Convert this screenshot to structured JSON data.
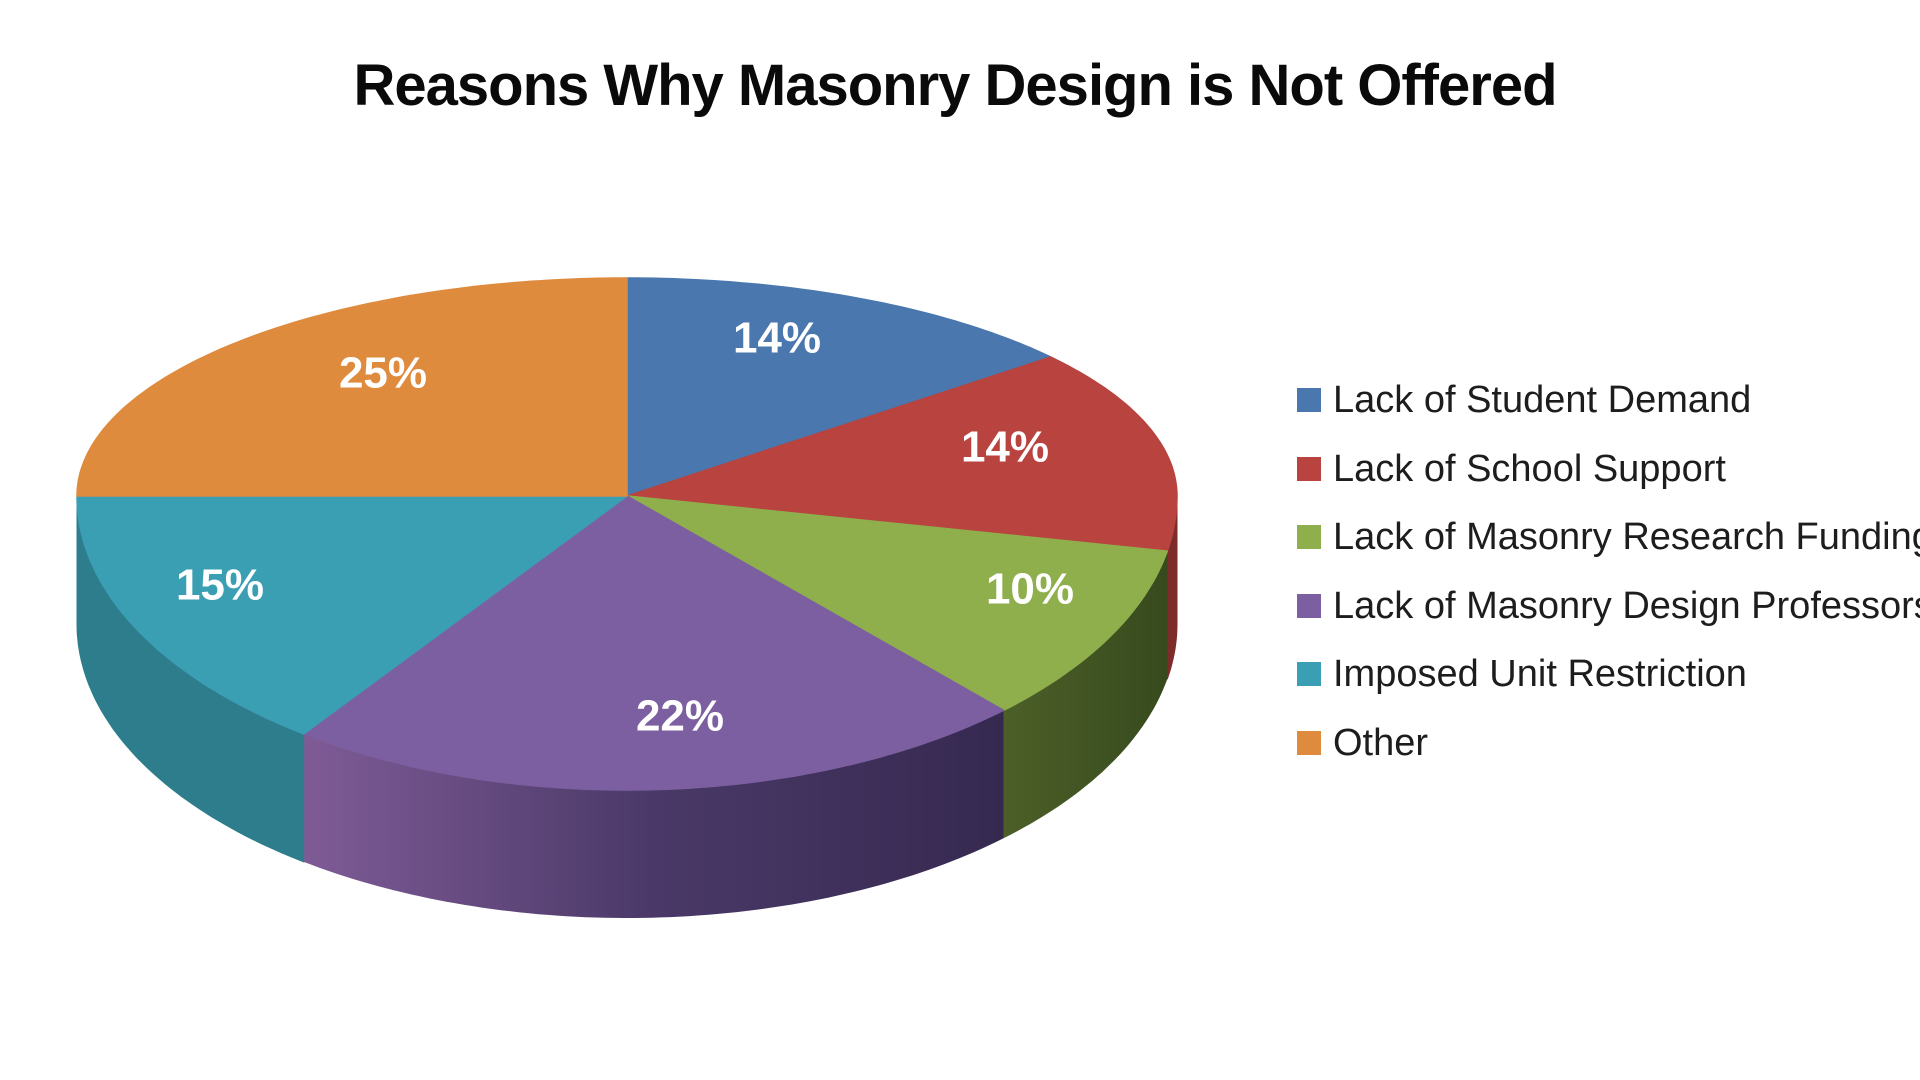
{
  "title": "Reasons Why Masonry Design is Not Offered",
  "chart_data": {
    "type": "pie",
    "style": "3d-pie",
    "title": "Reasons Why Masonry Design is Not Offered",
    "unit": "%",
    "start_angle_deg": 0,
    "direction": "clockwise",
    "legend_position": "right",
    "slices": [
      {
        "label": "Lack of Student Demand",
        "value": 14,
        "data_label": "14%",
        "color": "#4A77AE",
        "side_color": "#2F4E79"
      },
      {
        "label": "Lack of School Support",
        "value": 14,
        "data_label": "14%",
        "color": "#B8433F",
        "side_color": "#7E2C2A"
      },
      {
        "label": "Lack of Masonry Research Funding",
        "value": 10,
        "data_label": "10%",
        "color": "#8FAE4C",
        "side_color": "#3E5222",
        "side_gradient": [
          "#4C5F28",
          "#374A1D"
        ]
      },
      {
        "label": "Lack of Masonry Design Professors",
        "value": 22,
        "data_label": "22%",
        "color": "#7C5FA0",
        "side_color": "#3F3058",
        "side_gradient": [
          "#7F5B96",
          "#4A3968",
          "#362950"
        ]
      },
      {
        "label": "Imposed Unit Restriction",
        "value": 15,
        "data_label": "15%",
        "color": "#3B9FB4",
        "side_color": "#2D7D8C"
      },
      {
        "label": "Other",
        "value": 25,
        "data_label": "25%",
        "color": "#DF8B3E",
        "side_color": "#9A5F28"
      }
    ],
    "data_label_color": "#ffffff",
    "title_color": "#0a0a0a",
    "legend_text_color": "#1d1d1d",
    "background_color": "#ffffff"
  }
}
